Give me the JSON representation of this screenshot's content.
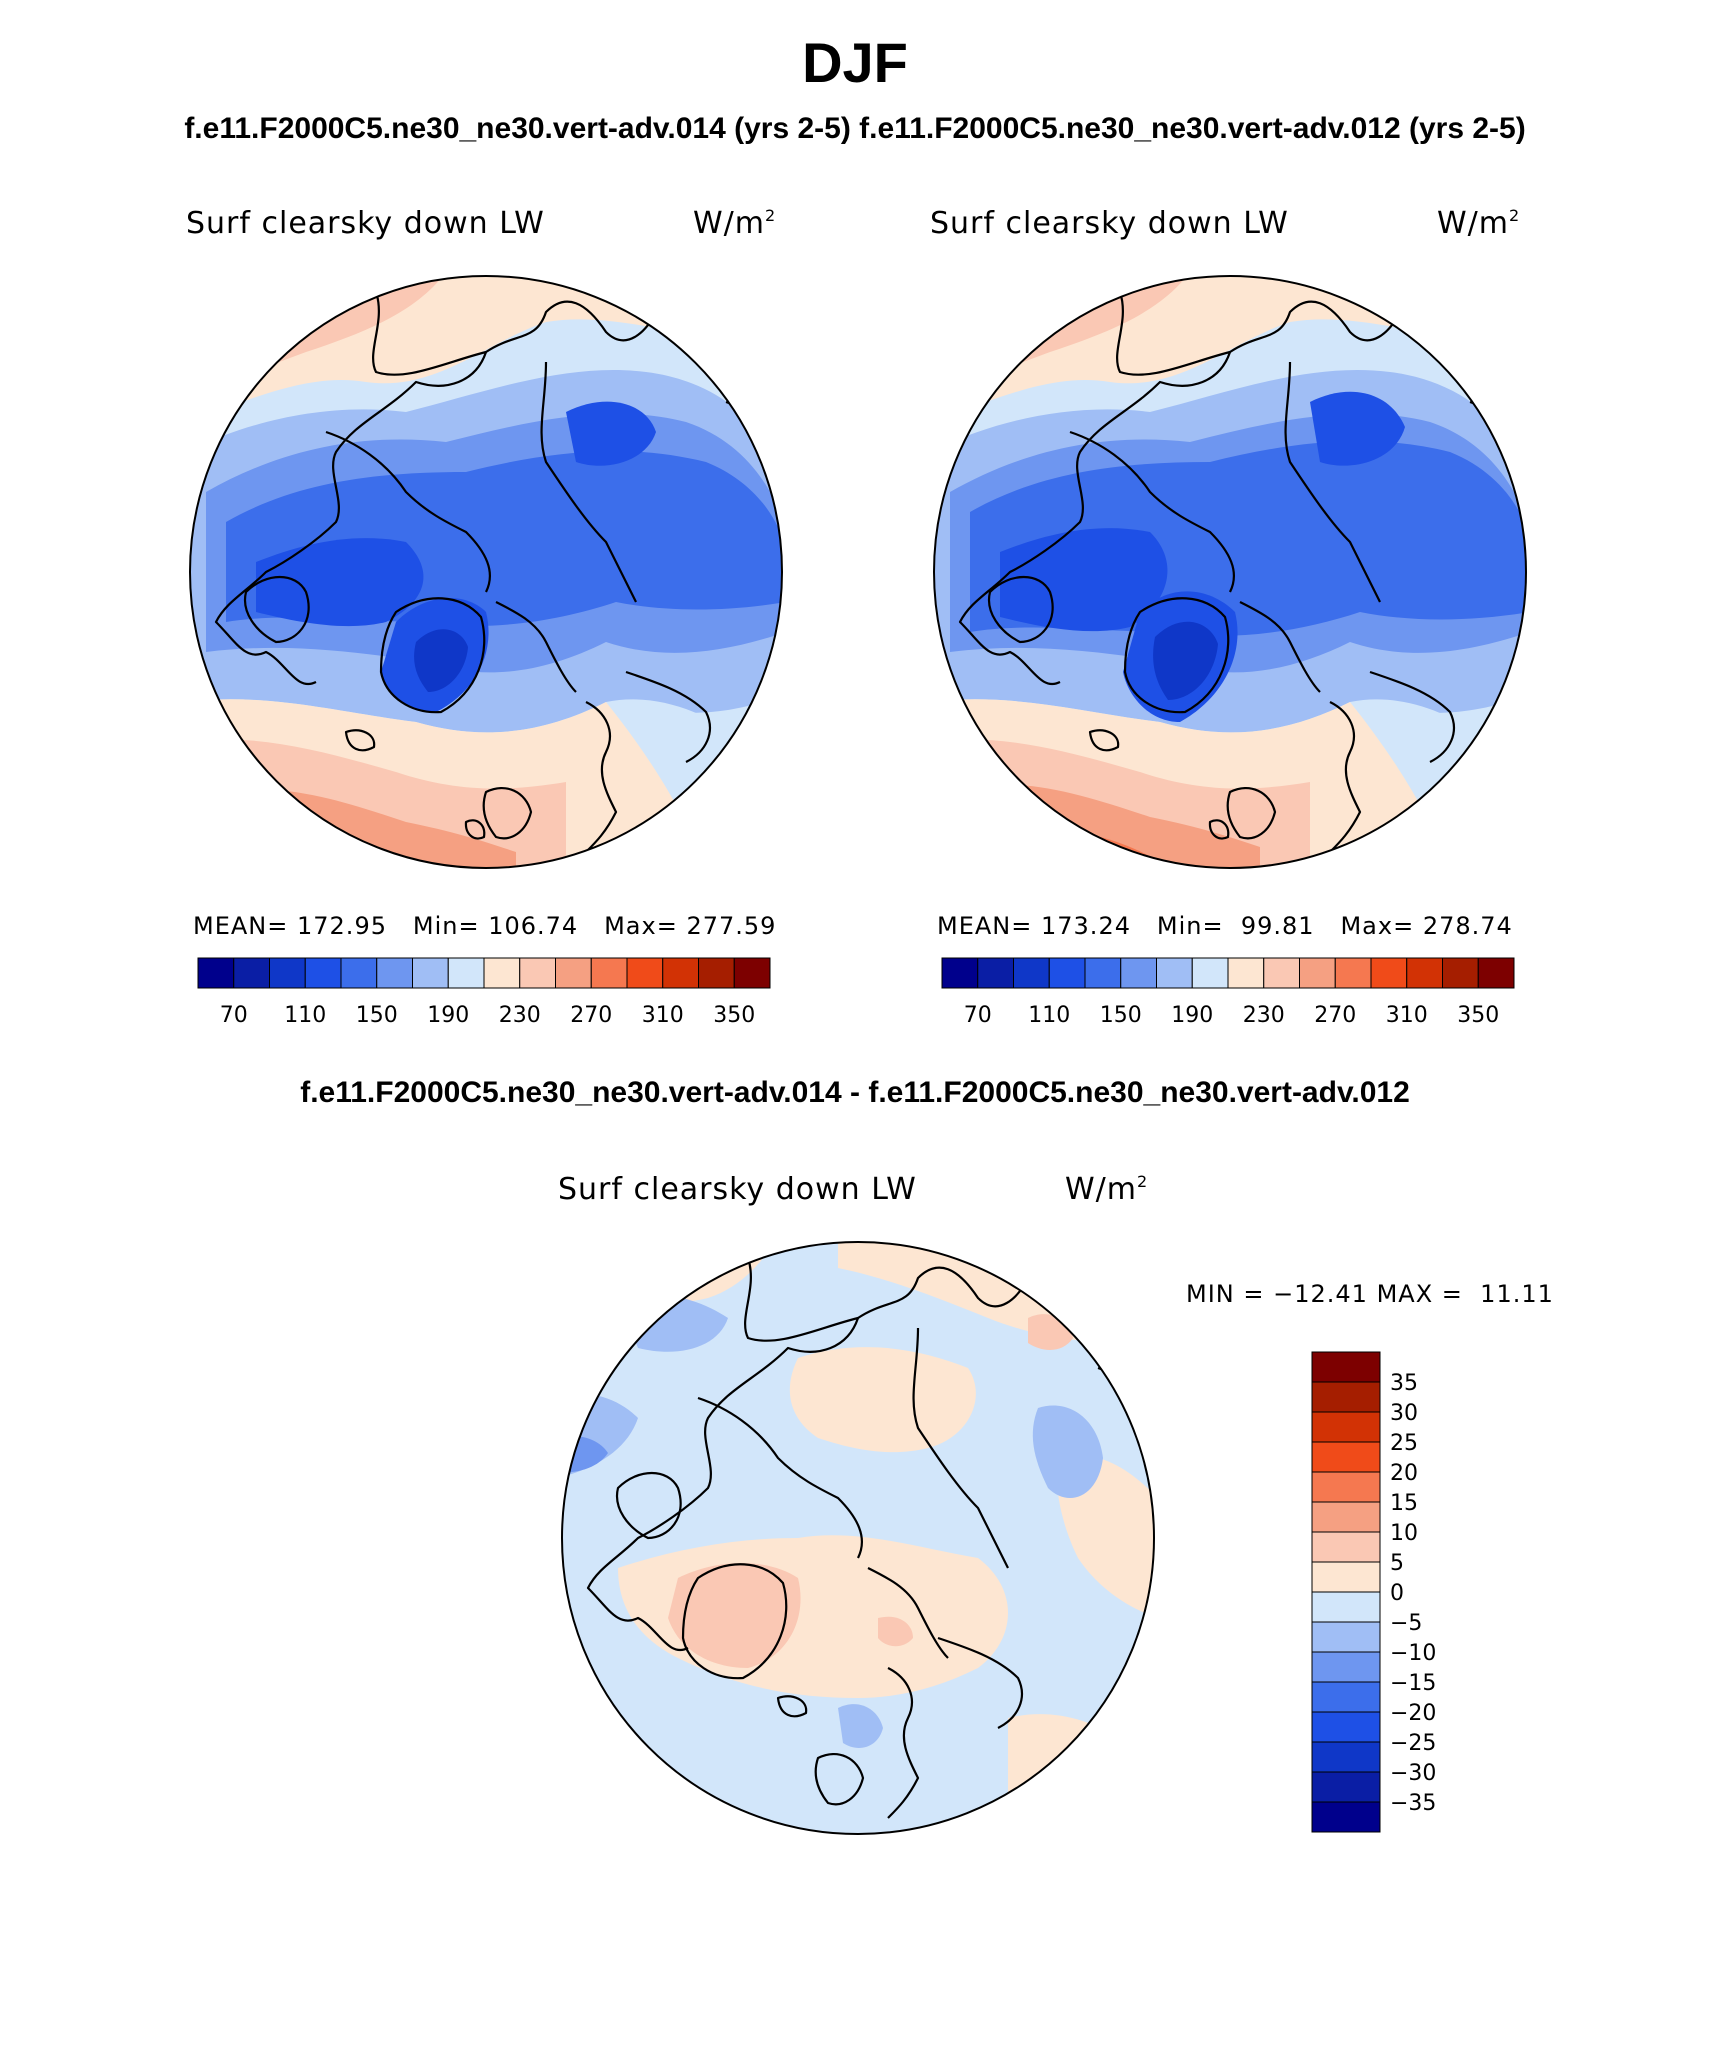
{
  "header": {
    "season": "DJF",
    "cases_line": "f.e11.F2000C5.ne30_ne30.vert-adv.014 (yrs 2-5)  f.e11.F2000C5.ne30_ne30.vert-adv.012 (yrs 2-5)",
    "diff_line": "f.e11.F2000C5.ne30_ne30.vert-adv.014 - f.e11.F2000C5.ne30_ne30.vert-adv.012"
  },
  "panels": [
    {
      "variable": "Surf clearsky down LW",
      "units": "W/m",
      "units_exp": "2",
      "mean_label": "MEAN=",
      "mean": "172.95",
      "min_label": "Min=",
      "min": "106.74",
      "max_label": "Max=",
      "max": "277.59"
    },
    {
      "variable": "Surf clearsky down LW",
      "units": "W/m",
      "units_exp": "2",
      "mean_label": "MEAN=",
      "mean": "173.24",
      "min_label": "Min=",
      "min": "99.81",
      "max_label": "Max=",
      "max": "278.74"
    }
  ],
  "diff_panel": {
    "variable": "Surf clearsky down LW",
    "units": "W/m",
    "units_exp": "2",
    "min_label": "MIN =",
    "min": "−12.41",
    "max_label": "MAX =",
    "max": "11.11"
  },
  "colorbar_main": {
    "tick_labels": [
      "70",
      "110",
      "150",
      "190",
      "230",
      "270",
      "310",
      "350"
    ],
    "colors": [
      "#00008c",
      "#0a1ea5",
      "#0f37c8",
      "#1e50e6",
      "#3c6eeb",
      "#6e96f0",
      "#a0bef5",
      "#d2e6fa",
      "#fde6d2",
      "#fac8b4",
      "#f5a082",
      "#f57850",
      "#f04b19",
      "#d23205",
      "#a51e00",
      "#7d0000"
    ]
  },
  "colorbar_diff": {
    "tick_labels": [
      "35",
      "30",
      "25",
      "20",
      "15",
      "10",
      "5",
      "0",
      "−5",
      "−10",
      "−15",
      "−20",
      "−25",
      "−30",
      "−35"
    ],
    "colors": [
      "#7d0000",
      "#a51e00",
      "#d23205",
      "#f04b19",
      "#f57850",
      "#f5a082",
      "#fac8b4",
      "#fde6d2",
      "#d2e6fa",
      "#a0bef5",
      "#6e96f0",
      "#3c6eeb",
      "#1e50e6",
      "#0f37c8",
      "#0a1ea5",
      "#00008c"
    ]
  },
  "colors": {
    "coastline": "#000000"
  }
}
